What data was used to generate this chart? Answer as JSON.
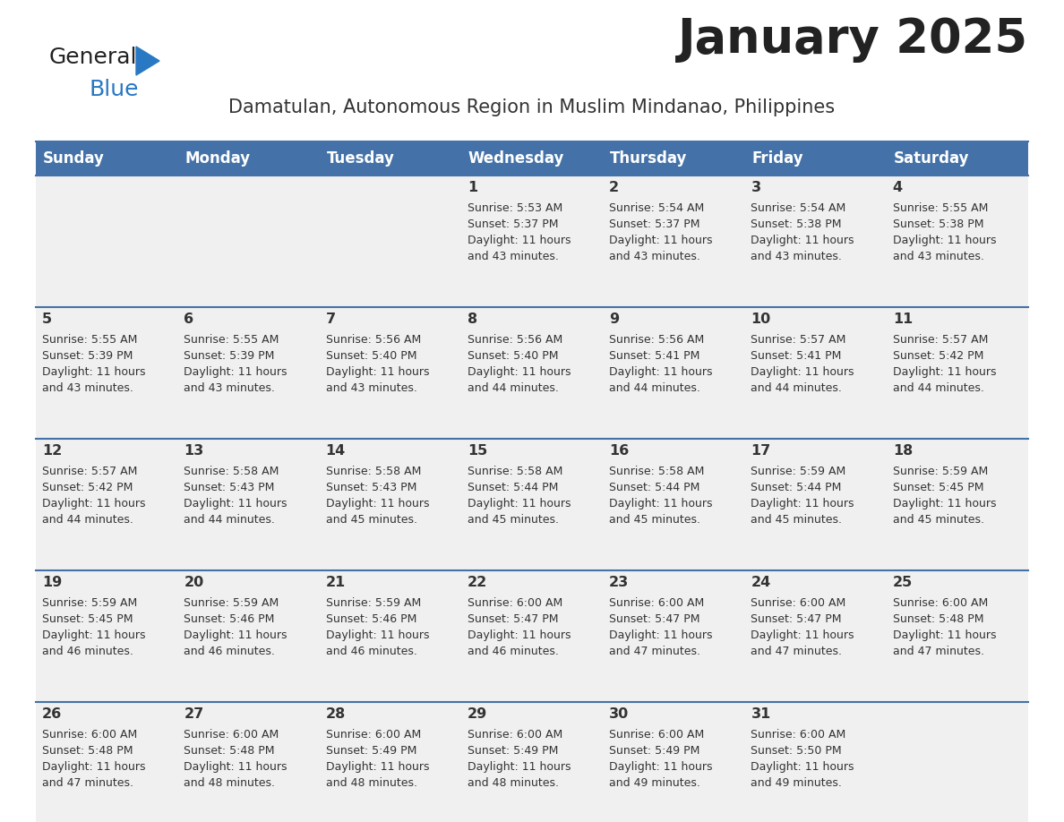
{
  "title": "January 2025",
  "subtitle": "Damatulan, Autonomous Region in Muslim Mindanao, Philippines",
  "days_of_week": [
    "Sunday",
    "Monday",
    "Tuesday",
    "Wednesday",
    "Thursday",
    "Friday",
    "Saturday"
  ],
  "header_bg": "#4472a8",
  "header_text": "#ffffff",
  "cell_bg_light": "#f0f0f0",
  "cell_bg_white": "#ffffff",
  "text_color": "#333333",
  "title_color": "#222222",
  "subtitle_color": "#333333",
  "divider_color": "#4472a8",
  "logo_general_color": "#222222",
  "logo_blue_color": "#2878c3",
  "calendar_data": [
    {
      "day": 1,
      "col": 3,
      "row": 0,
      "sunrise": "5:53 AM",
      "sunset": "5:37 PM",
      "daylight": "11 hours and 43 minutes."
    },
    {
      "day": 2,
      "col": 4,
      "row": 0,
      "sunrise": "5:54 AM",
      "sunset": "5:37 PM",
      "daylight": "11 hours and 43 minutes."
    },
    {
      "day": 3,
      "col": 5,
      "row": 0,
      "sunrise": "5:54 AM",
      "sunset": "5:38 PM",
      "daylight": "11 hours and 43 minutes."
    },
    {
      "day": 4,
      "col": 6,
      "row": 0,
      "sunrise": "5:55 AM",
      "sunset": "5:38 PM",
      "daylight": "11 hours and 43 minutes."
    },
    {
      "day": 5,
      "col": 0,
      "row": 1,
      "sunrise": "5:55 AM",
      "sunset": "5:39 PM",
      "daylight": "11 hours and 43 minutes."
    },
    {
      "day": 6,
      "col": 1,
      "row": 1,
      "sunrise": "5:55 AM",
      "sunset": "5:39 PM",
      "daylight": "11 hours and 43 minutes."
    },
    {
      "day": 7,
      "col": 2,
      "row": 1,
      "sunrise": "5:56 AM",
      "sunset": "5:40 PM",
      "daylight": "11 hours and 43 minutes."
    },
    {
      "day": 8,
      "col": 3,
      "row": 1,
      "sunrise": "5:56 AM",
      "sunset": "5:40 PM",
      "daylight": "11 hours and 44 minutes."
    },
    {
      "day": 9,
      "col": 4,
      "row": 1,
      "sunrise": "5:56 AM",
      "sunset": "5:41 PM",
      "daylight": "11 hours and 44 minutes."
    },
    {
      "day": 10,
      "col": 5,
      "row": 1,
      "sunrise": "5:57 AM",
      "sunset": "5:41 PM",
      "daylight": "11 hours and 44 minutes."
    },
    {
      "day": 11,
      "col": 6,
      "row": 1,
      "sunrise": "5:57 AM",
      "sunset": "5:42 PM",
      "daylight": "11 hours and 44 minutes."
    },
    {
      "day": 12,
      "col": 0,
      "row": 2,
      "sunrise": "5:57 AM",
      "sunset": "5:42 PM",
      "daylight": "11 hours and 44 minutes."
    },
    {
      "day": 13,
      "col": 1,
      "row": 2,
      "sunrise": "5:58 AM",
      "sunset": "5:43 PM",
      "daylight": "11 hours and 44 minutes."
    },
    {
      "day": 14,
      "col": 2,
      "row": 2,
      "sunrise": "5:58 AM",
      "sunset": "5:43 PM",
      "daylight": "11 hours and 45 minutes."
    },
    {
      "day": 15,
      "col": 3,
      "row": 2,
      "sunrise": "5:58 AM",
      "sunset": "5:44 PM",
      "daylight": "11 hours and 45 minutes."
    },
    {
      "day": 16,
      "col": 4,
      "row": 2,
      "sunrise": "5:58 AM",
      "sunset": "5:44 PM",
      "daylight": "11 hours and 45 minutes."
    },
    {
      "day": 17,
      "col": 5,
      "row": 2,
      "sunrise": "5:59 AM",
      "sunset": "5:44 PM",
      "daylight": "11 hours and 45 minutes."
    },
    {
      "day": 18,
      "col": 6,
      "row": 2,
      "sunrise": "5:59 AM",
      "sunset": "5:45 PM",
      "daylight": "11 hours and 45 minutes."
    },
    {
      "day": 19,
      "col": 0,
      "row": 3,
      "sunrise": "5:59 AM",
      "sunset": "5:45 PM",
      "daylight": "11 hours and 46 minutes."
    },
    {
      "day": 20,
      "col": 1,
      "row": 3,
      "sunrise": "5:59 AM",
      "sunset": "5:46 PM",
      "daylight": "11 hours and 46 minutes."
    },
    {
      "day": 21,
      "col": 2,
      "row": 3,
      "sunrise": "5:59 AM",
      "sunset": "5:46 PM",
      "daylight": "11 hours and 46 minutes."
    },
    {
      "day": 22,
      "col": 3,
      "row": 3,
      "sunrise": "6:00 AM",
      "sunset": "5:47 PM",
      "daylight": "11 hours and 46 minutes."
    },
    {
      "day": 23,
      "col": 4,
      "row": 3,
      "sunrise": "6:00 AM",
      "sunset": "5:47 PM",
      "daylight": "11 hours and 47 minutes."
    },
    {
      "day": 24,
      "col": 5,
      "row": 3,
      "sunrise": "6:00 AM",
      "sunset": "5:47 PM",
      "daylight": "11 hours and 47 minutes."
    },
    {
      "day": 25,
      "col": 6,
      "row": 3,
      "sunrise": "6:00 AM",
      "sunset": "5:48 PM",
      "daylight": "11 hours and 47 minutes."
    },
    {
      "day": 26,
      "col": 0,
      "row": 4,
      "sunrise": "6:00 AM",
      "sunset": "5:48 PM",
      "daylight": "11 hours and 47 minutes."
    },
    {
      "day": 27,
      "col": 1,
      "row": 4,
      "sunrise": "6:00 AM",
      "sunset": "5:48 PM",
      "daylight": "11 hours and 48 minutes."
    },
    {
      "day": 28,
      "col": 2,
      "row": 4,
      "sunrise": "6:00 AM",
      "sunset": "5:49 PM",
      "daylight": "11 hours and 48 minutes."
    },
    {
      "day": 29,
      "col": 3,
      "row": 4,
      "sunrise": "6:00 AM",
      "sunset": "5:49 PM",
      "daylight": "11 hours and 48 minutes."
    },
    {
      "day": 30,
      "col": 4,
      "row": 4,
      "sunrise": "6:00 AM",
      "sunset": "5:49 PM",
      "daylight": "11 hours and 49 minutes."
    },
    {
      "day": 31,
      "col": 5,
      "row": 4,
      "sunrise": "6:00 AM",
      "sunset": "5:50 PM",
      "daylight": "11 hours and 49 minutes."
    }
  ]
}
